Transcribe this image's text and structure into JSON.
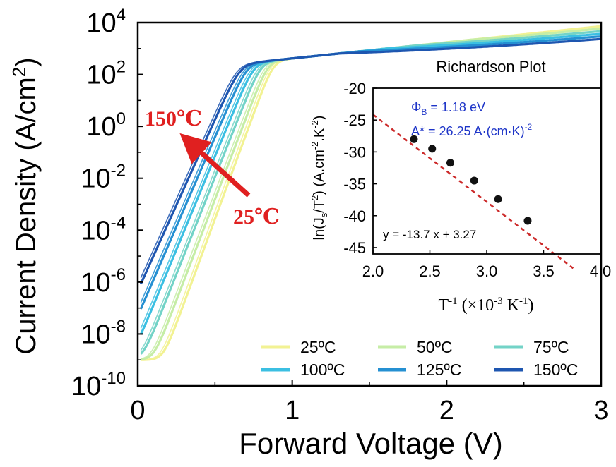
{
  "chart_data": [
    {
      "type": "line",
      "title": "",
      "xlabel": "Forward Voltage (V)",
      "ylabel_text": "Current Density (A/cm",
      "ylabel_sup": "2",
      "ylabel_close": ")",
      "xlim": [
        0,
        3
      ],
      "ylim_log10": [
        -10,
        4
      ],
      "x_ticks": [
        "0",
        "1",
        "2",
        "3"
      ],
      "y_tick_base": "10",
      "y_tick_exponents": [
        "4",
        "2",
        "0",
        "-2",
        "-4",
        "-6",
        "-8",
        "-10"
      ],
      "annotation_high": "150℃",
      "annotation_low": "25℃",
      "legend_position": "bottom-right",
      "series": [
        {
          "name": "25ºC",
          "color": "#f2f293",
          "onset_v": 0.72,
          "fwd_slope": 16.2,
          "sat_log": 3.9,
          "leak_log": -9.7
        },
        {
          "name": "50ºC",
          "color": "#c6eda6",
          "onset_v": 0.68,
          "fwd_slope": 15.6,
          "sat_log": 3.86,
          "leak_log": -9.5
        },
        {
          "name": "75ºC",
          "color": "#73d3c7",
          "onset_v": 0.63,
          "fwd_slope": 15.0,
          "sat_log": 3.82,
          "leak_log": -9.2
        },
        {
          "name": "100ºC",
          "color": "#3bbfe2",
          "onset_v": 0.58,
          "fwd_slope": 14.4,
          "sat_log": 3.78,
          "leak_log": -8.9
        },
        {
          "name": "125ºC",
          "color": "#2590d2",
          "onset_v": 0.53,
          "fwd_slope": 13.8,
          "sat_log": 3.74,
          "leak_log": -8.6
        },
        {
          "name": "150ºC",
          "color": "#1e56b0",
          "onset_v": 0.48,
          "fwd_slope": 13.2,
          "sat_log": 3.7,
          "leak_log": -8.2
        }
      ]
    },
    {
      "type": "scatter",
      "title": "Richardson Plot",
      "xlabel": "T",
      "xlabel_sup1": "-1",
      "xlabel_mid": " (×10",
      "xlabel_sup2": "-3",
      "xlabel_end": "  K",
      "xlabel_sup3": "-1",
      "xlabel_close": ")",
      "ylabel": "ln(J",
      "ylabel_sub": "s",
      "ylabel_mid": "/T",
      "ylabel_sup1": "2",
      "ylabel_end": ") (A.cm",
      "ylabel_sup2": "-2",
      "ylabel_dot": ".K",
      "ylabel_sup3": "-2",
      "ylabel_close": ")",
      "xlim": [
        2.0,
        4.0
      ],
      "ylim": [
        -46,
        -20
      ],
      "x_ticks": [
        "2.0",
        "2.5",
        "3.0",
        "3.5",
        "4.0"
      ],
      "y_ticks": [
        "-20",
        "-25",
        "-30",
        "-35",
        "-40",
        "-45"
      ],
      "x": [
        2.36,
        2.52,
        2.68,
        2.89,
        3.1,
        3.36
      ],
      "y": [
        -28.0,
        -29.5,
        -31.7,
        -34.5,
        -37.4,
        -40.8
      ],
      "fit": {
        "slope": -13.7,
        "intercept": 3.27,
        "x_range": [
          2.0,
          3.76
        ]
      },
      "fit_color": "#cc2a2a",
      "equation": "y = -13.7 x + 3.27",
      "phi_symbol": "Φ",
      "phi_sub": "B",
      "phi_text": " = 1.18 eV",
      "astar_text": "A* = 26.25 A·(cm·K)",
      "astar_sup": "-2",
      "param_color": "#1e35c8"
    }
  ]
}
